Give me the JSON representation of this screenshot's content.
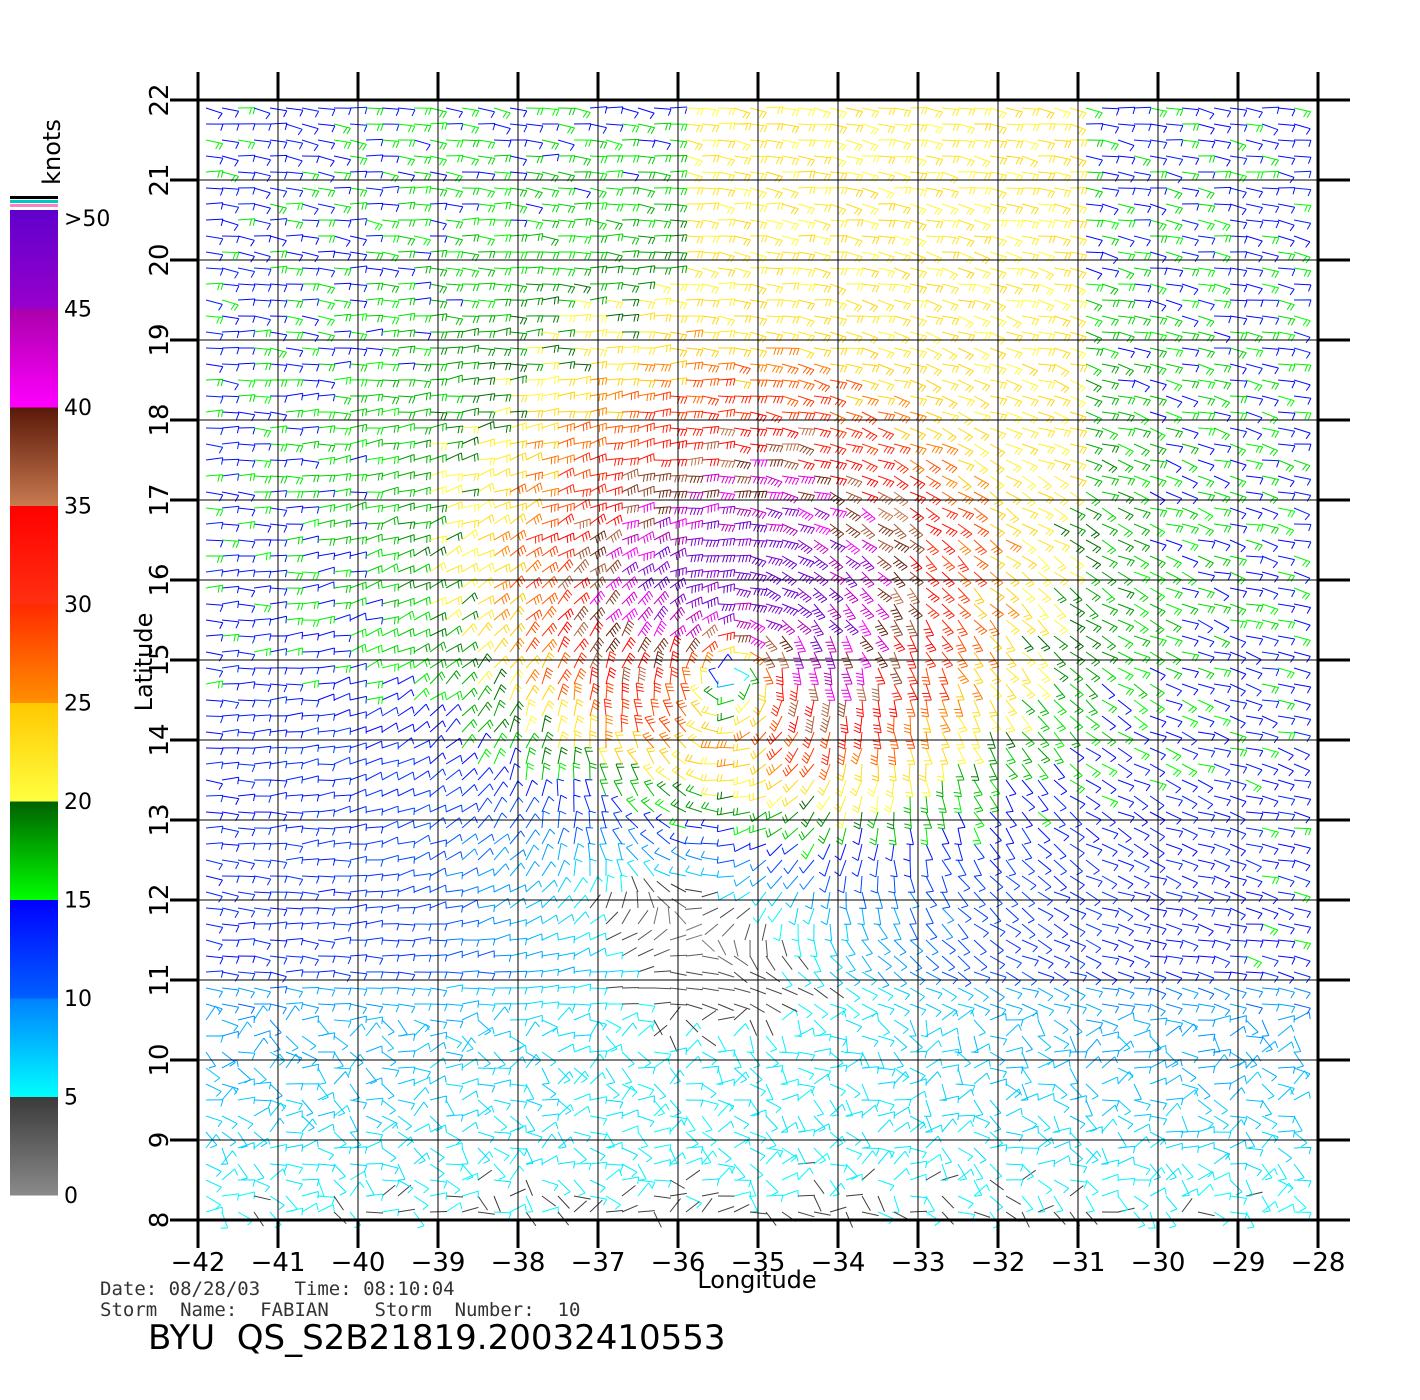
{
  "plot": {
    "x_axis_label": "Longitude",
    "y_axis_label": "Latitude",
    "lon_ticks": [
      "-42",
      "-41",
      "-40",
      "-39",
      "-38",
      "-37",
      "-36",
      "-35",
      "-34",
      "-33",
      "-32",
      "-31",
      "-30",
      "-29",
      "-28"
    ],
    "lat_ticks": [
      "8",
      "9",
      "10",
      "11",
      "12",
      "13",
      "14",
      "15",
      "16",
      "17",
      "18",
      "19",
      "20",
      "21",
      "22"
    ],
    "lon_range": [
      -42,
      -28
    ],
    "lat_range": [
      8,
      22
    ],
    "storm_center": {
      "lon": -35.3,
      "lat": 15.0
    },
    "grid": true
  },
  "legend": {
    "title": "knots",
    "labels": [
      ">50",
      "45",
      "40",
      "35",
      "30",
      "25",
      "20",
      "15",
      "10",
      "5",
      "0"
    ],
    "bands": [
      {
        "from": 0,
        "to": 5,
        "top": "#3a3a3a",
        "bottom": "#8a8a8a"
      },
      {
        "from": 5,
        "to": 10,
        "top": "#0080ff",
        "bottom": "#00ffff"
      },
      {
        "from": 10,
        "to": 15,
        "top": "#0000ff",
        "bottom": "#0060ff"
      },
      {
        "from": 15,
        "to": 20,
        "top": "#006000",
        "bottom": "#00ff00"
      },
      {
        "from": 20,
        "to": 25,
        "top": "#ffc800",
        "bottom": "#ffff40"
      },
      {
        "from": 25,
        "to": 30,
        "top": "#ff2a00",
        "bottom": "#ff9000"
      },
      {
        "from": 30,
        "to": 35,
        "top": "#ff0000",
        "bottom": "#ff3010"
      },
      {
        "from": 35,
        "to": 40,
        "top": "#5a1808",
        "bottom": "#c87a50"
      },
      {
        "from": 40,
        "to": 45,
        "top": "#aa00aa",
        "bottom": "#ff00ff"
      },
      {
        "from": 45,
        "to": 50,
        "top": "#6000cc",
        "bottom": "#9900cc"
      }
    ],
    "top_stripes": [
      "#000000",
      "#00c8c8",
      "#ff80c0"
    ]
  },
  "info": {
    "date_line": "Date: 08/28/03   Time: 08:10:04",
    "storm_line": "Storm  Name:  FABIAN    Storm  Number:  10",
    "file_id": "BYU  QS_S2B21819.20032410553"
  }
}
